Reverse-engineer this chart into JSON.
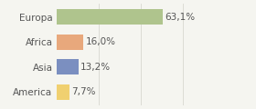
{
  "categories": [
    "Europa",
    "Africa",
    "Asia",
    "America"
  ],
  "values": [
    63.1,
    16.0,
    13.2,
    7.7
  ],
  "labels": [
    "63,1%",
    "16,0%",
    "13,2%",
    "7,7%"
  ],
  "bar_colors": [
    "#afc48d",
    "#e8a87c",
    "#7b8fc0",
    "#f0d070"
  ],
  "background_color": "#f5f5f0",
  "xlim": [
    0,
    85
  ],
  "bar_height": 0.62,
  "label_fontsize": 7.5,
  "category_fontsize": 7.5,
  "grid_color": "#d8d8d0",
  "text_color": "#555555"
}
